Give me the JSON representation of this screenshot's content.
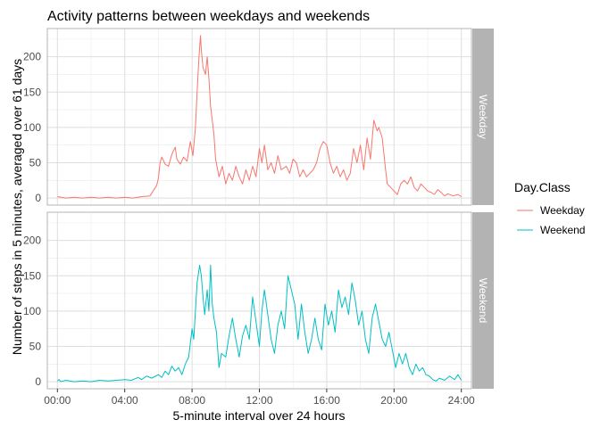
{
  "chart_data": {
    "type": "line",
    "title": "Activity patterns between weekdays and weekends",
    "xlabel": "5-minute interval over 24 hours",
    "ylabel": "Number of steps in 5 minutes, averaged over 61 days",
    "xlim_hours": [
      -0.6,
      24.6
    ],
    "ylim": [
      -10,
      240
    ],
    "x_ticks": [
      {
        "value": 0,
        "label": "00:00"
      },
      {
        "value": 4,
        "label": "04:00"
      },
      {
        "value": 8,
        "label": "08:00"
      },
      {
        "value": 12,
        "label": "12:00"
      },
      {
        "value": 16,
        "label": "16:00"
      },
      {
        "value": 20,
        "label": "20:00"
      },
      {
        "value": 24,
        "label": "24:00"
      }
    ],
    "y_ticks": [
      0,
      50,
      100,
      150,
      200
    ],
    "grid": true,
    "legend": {
      "title": "Day.Class",
      "placement": "right",
      "entries": [
        {
          "label": "Weekday",
          "color": "#F8766D"
        },
        {
          "label": "Weekend",
          "color": "#00BFC4"
        }
      ]
    },
    "panels": [
      {
        "strip": "Weekday",
        "color": "#F8766D",
        "points": [
          [
            0,
            2
          ],
          [
            0.5,
            0
          ],
          [
            1,
            1
          ],
          [
            1.5,
            0
          ],
          [
            2,
            1
          ],
          [
            2.5,
            0
          ],
          [
            3,
            1
          ],
          [
            3.5,
            0
          ],
          [
            4,
            1
          ],
          [
            4.5,
            0
          ],
          [
            5,
            2
          ],
          [
            5.5,
            3
          ],
          [
            5.9,
            18
          ],
          [
            6,
            28
          ],
          [
            6.1,
            50
          ],
          [
            6.2,
            58
          ],
          [
            6.4,
            48
          ],
          [
            6.6,
            45
          ],
          [
            6.8,
            62
          ],
          [
            7,
            72
          ],
          [
            7.1,
            55
          ],
          [
            7.3,
            48
          ],
          [
            7.5,
            58
          ],
          [
            7.7,
            52
          ],
          [
            7.9,
            80
          ],
          [
            8.05,
            60
          ],
          [
            8.2,
            100
          ],
          [
            8.3,
            150
          ],
          [
            8.4,
            195
          ],
          [
            8.5,
            230
          ],
          [
            8.55,
            210
          ],
          [
            8.65,
            185
          ],
          [
            8.8,
            175
          ],
          [
            8.9,
            200
          ],
          [
            9.0,
            170
          ],
          [
            9.1,
            130
          ],
          [
            9.2,
            110
          ],
          [
            9.3,
            90
          ],
          [
            9.4,
            55
          ],
          [
            9.6,
            30
          ],
          [
            9.8,
            45
          ],
          [
            10,
            20
          ],
          [
            10.2,
            35
          ],
          [
            10.4,
            25
          ],
          [
            10.6,
            45
          ],
          [
            10.8,
            30
          ],
          [
            11,
            20
          ],
          [
            11.2,
            40
          ],
          [
            11.4,
            25
          ],
          [
            11.6,
            45
          ],
          [
            11.8,
            30
          ],
          [
            12,
            70
          ],
          [
            12.15,
            50
          ],
          [
            12.3,
            75
          ],
          [
            12.5,
            40
          ],
          [
            12.7,
            50
          ],
          [
            12.9,
            35
          ],
          [
            13.1,
            60
          ],
          [
            13.3,
            40
          ],
          [
            13.6,
            45
          ],
          [
            13.8,
            35
          ],
          [
            14,
            55
          ],
          [
            14.2,
            50
          ],
          [
            14.4,
            30
          ],
          [
            14.6,
            40
          ],
          [
            14.8,
            30
          ],
          [
            15,
            35
          ],
          [
            15.2,
            40
          ],
          [
            15.4,
            50
          ],
          [
            15.6,
            70
          ],
          [
            15.8,
            80
          ],
          [
            16,
            75
          ],
          [
            16.2,
            50
          ],
          [
            16.4,
            35
          ],
          [
            16.6,
            45
          ],
          [
            16.8,
            30
          ],
          [
            17,
            40
          ],
          [
            17.2,
            25
          ],
          [
            17.4,
            35
          ],
          [
            17.6,
            70
          ],
          [
            17.8,
            50
          ],
          [
            18,
            75
          ],
          [
            18.2,
            40
          ],
          [
            18.4,
            85
          ],
          [
            18.6,
            55
          ],
          [
            18.8,
            110
          ],
          [
            19,
            95
          ],
          [
            19.1,
            100
          ],
          [
            19.3,
            85
          ],
          [
            19.5,
            40
          ],
          [
            19.6,
            20
          ],
          [
            19.8,
            15
          ],
          [
            20,
            10
          ],
          [
            20.2,
            5
          ],
          [
            20.4,
            20
          ],
          [
            20.6,
            25
          ],
          [
            20.8,
            20
          ],
          [
            21,
            30
          ],
          [
            21.2,
            15
          ],
          [
            21.4,
            10
          ],
          [
            21.6,
            20
          ],
          [
            21.8,
            15
          ],
          [
            22,
            10
          ],
          [
            22.2,
            8
          ],
          [
            22.4,
            5
          ],
          [
            22.6,
            12
          ],
          [
            22.8,
            8
          ],
          [
            23,
            3
          ],
          [
            23.2,
            6
          ],
          [
            23.5,
            3
          ],
          [
            23.8,
            5
          ],
          [
            24,
            2
          ]
        ]
      },
      {
        "strip": "Weekend",
        "color": "#00BFC4",
        "points": [
          [
            0,
            1
          ],
          [
            0.1,
            3
          ],
          [
            0.2,
            0
          ],
          [
            0.5,
            2
          ],
          [
            1,
            0
          ],
          [
            1.5,
            1
          ],
          [
            2,
            0
          ],
          [
            2.5,
            2
          ],
          [
            3,
            1
          ],
          [
            3.5,
            2
          ],
          [
            4,
            3
          ],
          [
            4.4,
            2
          ],
          [
            4.8,
            6
          ],
          [
            5,
            3
          ],
          [
            5.3,
            8
          ],
          [
            5.6,
            5
          ],
          [
            6,
            10
          ],
          [
            6.2,
            6
          ],
          [
            6.4,
            15
          ],
          [
            6.6,
            10
          ],
          [
            6.8,
            22
          ],
          [
            7,
            15
          ],
          [
            7.2,
            20
          ],
          [
            7.4,
            10
          ],
          [
            7.6,
            25
          ],
          [
            7.8,
            35
          ],
          [
            8,
            75
          ],
          [
            8.1,
            60
          ],
          [
            8.2,
            100
          ],
          [
            8.3,
            140
          ],
          [
            8.45,
            165
          ],
          [
            8.55,
            150
          ],
          [
            8.65,
            120
          ],
          [
            8.75,
            95
          ],
          [
            8.9,
            130
          ],
          [
            9.0,
            100
          ],
          [
            9.1,
            165
          ],
          [
            9.2,
            110
          ],
          [
            9.3,
            90
          ],
          [
            9.45,
            70
          ],
          [
            9.6,
            20
          ],
          [
            9.75,
            40
          ],
          [
            10,
            35
          ],
          [
            10.2,
            65
          ],
          [
            10.4,
            90
          ],
          [
            10.6,
            60
          ],
          [
            10.8,
            35
          ],
          [
            11,
            65
          ],
          [
            11.2,
            80
          ],
          [
            11.4,
            60
          ],
          [
            11.6,
            120
          ],
          [
            11.8,
            85
          ],
          [
            12,
            50
          ],
          [
            12.15,
            100
          ],
          [
            12.3,
            130
          ],
          [
            12.5,
            95
          ],
          [
            12.7,
            60
          ],
          [
            12.9,
            40
          ],
          [
            13.1,
            80
          ],
          [
            13.3,
            100
          ],
          [
            13.5,
            75
          ],
          [
            13.7,
            150
          ],
          [
            13.9,
            130
          ],
          [
            14.1,
            110
          ],
          [
            14.3,
            60
          ],
          [
            14.5,
            110
          ],
          [
            14.7,
            70
          ],
          [
            14.9,
            40
          ],
          [
            15.1,
            60
          ],
          [
            15.3,
            90
          ],
          [
            15.5,
            60
          ],
          [
            15.7,
            45
          ],
          [
            15.9,
            110
          ],
          [
            16.1,
            80
          ],
          [
            16.3,
            100
          ],
          [
            16.5,
            70
          ],
          [
            16.7,
            130
          ],
          [
            16.9,
            105
          ],
          [
            17.1,
            120
          ],
          [
            17.3,
            95
          ],
          [
            17.5,
            140
          ],
          [
            17.7,
            115
          ],
          [
            17.9,
            80
          ],
          [
            18.1,
            100
          ],
          [
            18.3,
            60
          ],
          [
            18.5,
            40
          ],
          [
            18.7,
            90
          ],
          [
            18.9,
            110
          ],
          [
            19.1,
            85
          ],
          [
            19.3,
            60
          ],
          [
            19.5,
            50
          ],
          [
            19.7,
            70
          ],
          [
            19.9,
            45
          ],
          [
            20.1,
            20
          ],
          [
            20.3,
            40
          ],
          [
            20.5,
            25
          ],
          [
            20.7,
            40
          ],
          [
            20.9,
            20
          ],
          [
            21.1,
            10
          ],
          [
            21.3,
            25
          ],
          [
            21.5,
            15
          ],
          [
            21.7,
            20
          ],
          [
            21.9,
            10
          ],
          [
            22.1,
            8
          ],
          [
            22.3,
            3
          ],
          [
            22.5,
            1
          ],
          [
            22.7,
            5
          ],
          [
            23,
            2
          ],
          [
            23.3,
            8
          ],
          [
            23.6,
            3
          ],
          [
            23.8,
            10
          ],
          [
            24,
            2
          ]
        ]
      }
    ]
  }
}
